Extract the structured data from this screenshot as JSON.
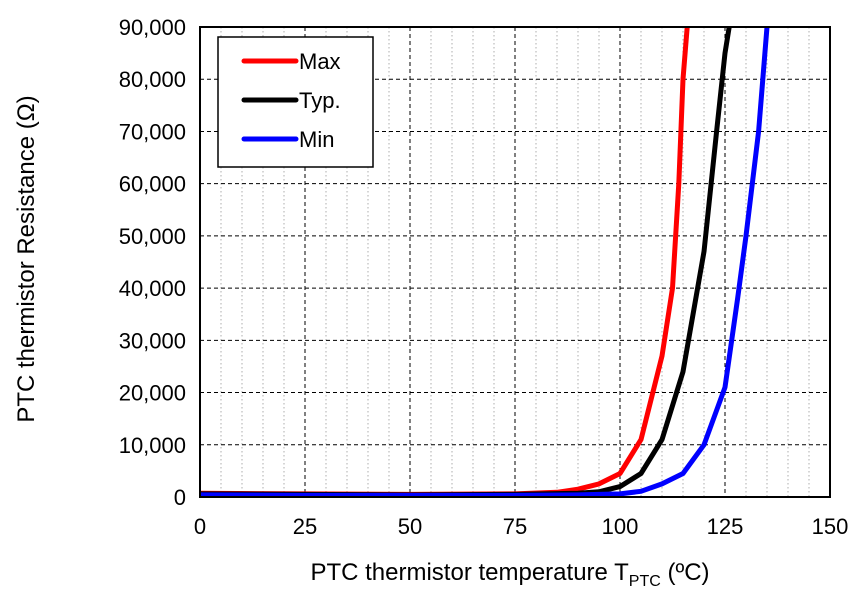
{
  "chart_data": {
    "type": "line",
    "xlabel": "PTC thermistor temperature T",
    "xlabel_subscript": "PTC",
    "xlabel_unit": " (ºC)",
    "ylabel": "PTC thermistor Resistance (Ω)",
    "xlim": [
      0,
      150
    ],
    "ylim": [
      0,
      90000
    ],
    "x_ticks": [
      0,
      25,
      50,
      75,
      100,
      125,
      150
    ],
    "x_tick_labels": [
      "0",
      "25",
      "50",
      "75",
      "100",
      "125",
      "150"
    ],
    "y_ticks": [
      0,
      10000,
      20000,
      30000,
      40000,
      50000,
      60000,
      70000,
      80000,
      90000
    ],
    "y_tick_labels": [
      "0",
      "10,000",
      "20,000",
      "30,000",
      "40,000",
      "50,000",
      "60,000",
      "70,000",
      "80,000",
      "90,000"
    ],
    "grid": true,
    "legend_position": "top-left",
    "series": [
      {
        "name": "Max",
        "color": "#ff0000",
        "x": [
          0,
          25,
          50,
          75,
          85,
          90,
          95,
          100,
          105,
          110,
          112.5,
          114,
          115,
          116
        ],
        "y": [
          700,
          600,
          500,
          600,
          900,
          1500,
          2500,
          4500,
          11000,
          27000,
          40000,
          60000,
          80000,
          90000
        ]
      },
      {
        "name": "Typ.",
        "color": "#000000",
        "x": [
          0,
          25,
          50,
          75,
          90,
          95,
          100,
          105,
          110,
          115,
          120,
          123,
          125,
          126
        ],
        "y": [
          600,
          500,
          400,
          500,
          700,
          1000,
          2000,
          4500,
          11000,
          24000,
          47000,
          70000,
          85000,
          90000
        ]
      },
      {
        "name": "Min",
        "color": "#0000ff",
        "x": [
          0,
          25,
          50,
          75,
          90,
          100,
          105,
          110,
          115,
          120,
          125,
          128,
          130,
          133,
          135
        ],
        "y": [
          400,
          300,
          300,
          300,
          400,
          600,
          1100,
          2500,
          4500,
          10000,
          21000,
          38000,
          50000,
          70000,
          90000
        ]
      }
    ]
  }
}
